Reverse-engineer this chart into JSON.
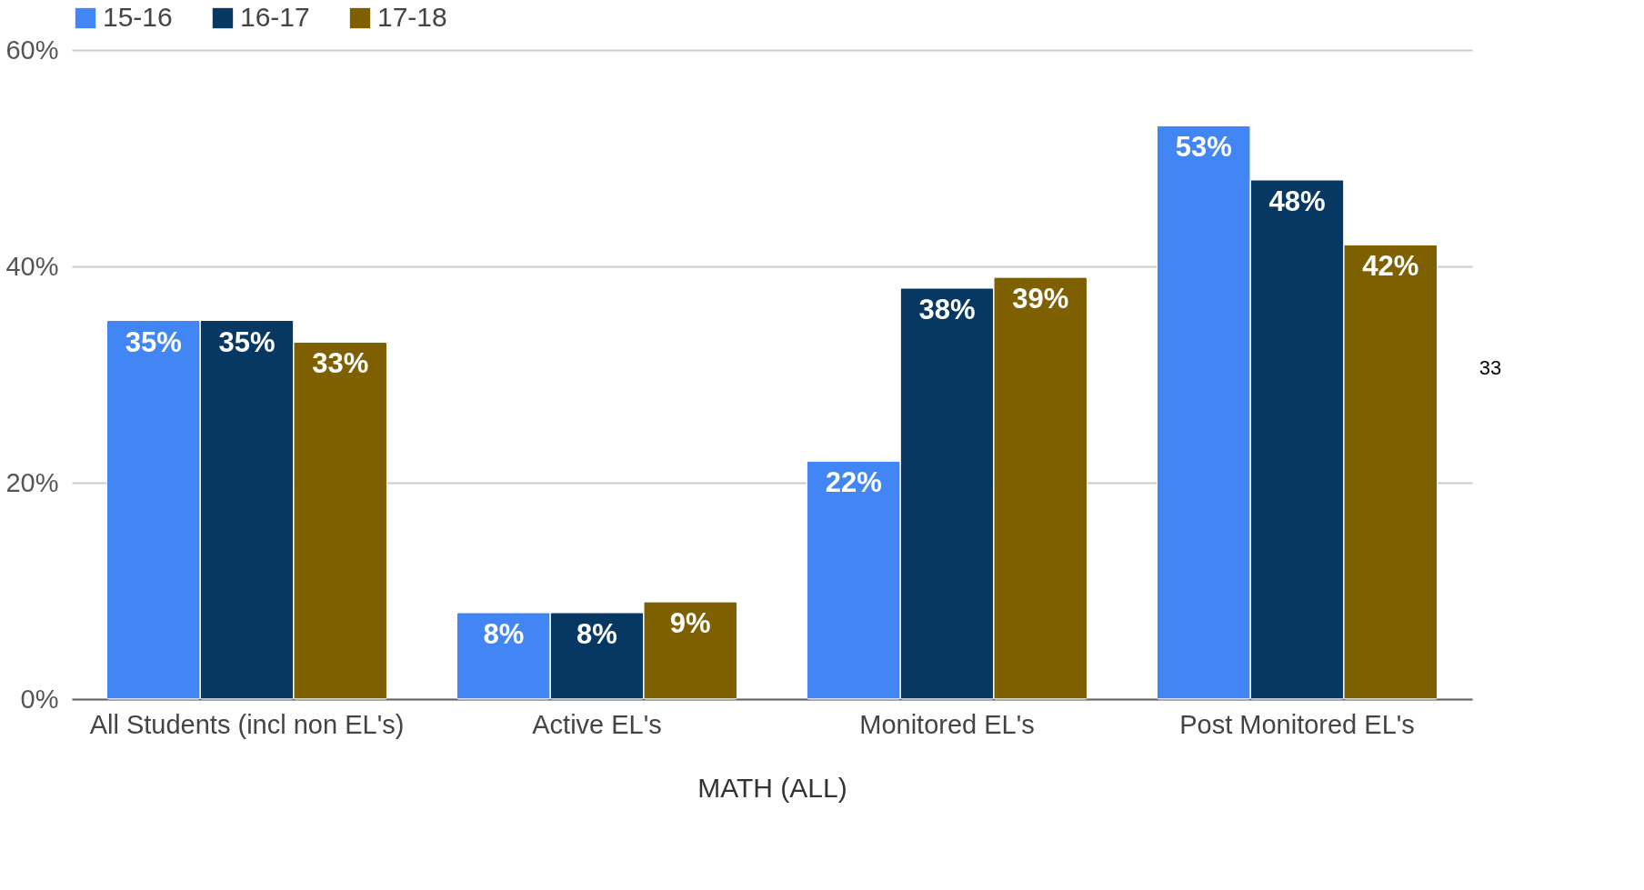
{
  "chart_data": {
    "type": "bar",
    "xlabel": "MATH (ALL)",
    "categories": [
      "All Students (incl non EL's)",
      "Active EL's",
      "Monitored EL's",
      "Post Monitored EL's"
    ],
    "series": [
      {
        "name": "15-16",
        "color": "#4285f4",
        "values": [
          35,
          8,
          22,
          53
        ],
        "value_labels": [
          "35%",
          "8%",
          "22%",
          "53%"
        ]
      },
      {
        "name": "16-17",
        "color": "#073763",
        "values": [
          35,
          8,
          38,
          48
        ],
        "value_labels": [
          "35%",
          "8%",
          "38%",
          "48%"
        ]
      },
      {
        "name": "17-18",
        "color": "#7f6000",
        "values": [
          33,
          9,
          39,
          42
        ],
        "value_labels": [
          "33%",
          "9%",
          "39%",
          "42%"
        ]
      }
    ],
    "ylim": [
      0,
      60
    ],
    "yticks": [
      {
        "value": 0,
        "label": "0%"
      },
      {
        "value": 20,
        "label": "20%"
      },
      {
        "value": 40,
        "label": "40%"
      },
      {
        "value": 60,
        "label": "60%"
      }
    ],
    "grid": "y",
    "legend": "top",
    "annotations": [
      "33"
    ]
  }
}
